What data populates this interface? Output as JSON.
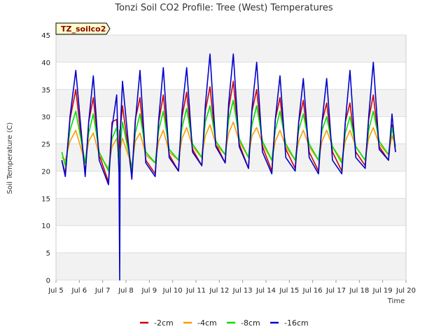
{
  "chart_data": {
    "type": "line",
    "title": "Tonzi Soil CO2 Profile: Tree (West) Temperatures",
    "xlabel": "Time",
    "ylabel": "Soil Temperature (C)",
    "badge": "TZ_soilco2",
    "ylim": [
      0,
      45
    ],
    "yticks": [
      0,
      5,
      10,
      15,
      20,
      25,
      30,
      35,
      40,
      45
    ],
    "xlim": [
      "2024-07-05",
      "2024-07-20"
    ],
    "xticks": [
      "Jul 5",
      "Jul 6",
      "Jul 7",
      "Jul 8",
      "Jul 9",
      "Jul 10",
      "Jul 11",
      "Jul 12",
      "Jul 13",
      "Jul 14",
      "Jul 15",
      "Jul 16",
      "Jul 17",
      "Jul 18",
      "Jul 19",
      "Jul 20"
    ],
    "grid": true,
    "legend_position": "bottom",
    "x_days": [
      5.25,
      5.4,
      5.6,
      5.85,
      6.25,
      6.4,
      6.6,
      6.85,
      7.25,
      7.4,
      7.6,
      7.7,
      7.73,
      7.75,
      7.85,
      8.25,
      8.4,
      8.6,
      8.85,
      9.25,
      9.4,
      9.6,
      9.85,
      10.25,
      10.4,
      10.6,
      10.85,
      11.25,
      11.4,
      11.6,
      11.85,
      12.25,
      12.4,
      12.6,
      12.85,
      13.25,
      13.4,
      13.6,
      13.85,
      14.25,
      14.4,
      14.6,
      14.85,
      15.25,
      15.4,
      15.6,
      15.85,
      16.25,
      16.4,
      16.6,
      16.85,
      17.25,
      17.4,
      17.6,
      17.85,
      18.25,
      18.4,
      18.6,
      18.85,
      19.25,
      19.4,
      19.55
    ],
    "series": [
      {
        "name": "-2cm",
        "color": "#cc0000",
        "values": [
          22.0,
          19.5,
          29.5,
          35.0,
          19.5,
          29.0,
          33.5,
          23.0,
          18.0,
          29.0,
          29.5,
          20.0,
          27.5,
          27.5,
          32.0,
          19.0,
          29.5,
          33.5,
          22.0,
          19.5,
          29.0,
          34.0,
          23.0,
          20.0,
          30.0,
          34.5,
          24.0,
          21.0,
          31.0,
          35.5,
          25.0,
          21.5,
          31.5,
          36.5,
          25.0,
          20.5,
          31.0,
          35.0,
          24.5,
          20.0,
          29.5,
          33.5,
          24.0,
          20.5,
          29.0,
          33.0,
          23.5,
          20.0,
          29.0,
          32.5,
          23.5,
          20.0,
          29.0,
          32.5,
          23.5,
          21.0,
          29.5,
          34.0,
          24.5,
          22.0,
          28.5,
          23.5
        ]
      },
      {
        "name": "-4cm",
        "color": "#ff9900",
        "values": [
          22.5,
          22.0,
          25.5,
          27.5,
          21.5,
          25.5,
          27.0,
          23.0,
          20.5,
          24.5,
          26.0,
          22.0,
          23.5,
          24.0,
          26.0,
          21.0,
          25.5,
          27.0,
          23.0,
          21.5,
          25.5,
          27.5,
          23.5,
          22.0,
          26.0,
          28.0,
          24.5,
          22.5,
          26.5,
          28.5,
          25.0,
          23.0,
          27.0,
          29.0,
          25.5,
          22.5,
          26.5,
          28.0,
          25.0,
          22.0,
          25.5,
          27.5,
          24.5,
          22.0,
          25.5,
          27.5,
          24.5,
          22.0,
          25.5,
          27.5,
          24.5,
          22.0,
          25.5,
          27.5,
          24.5,
          22.0,
          26.0,
          28.0,
          25.0,
          23.0,
          26.5,
          24.5
        ]
      },
      {
        "name": "-8cm",
        "color": "#00dd00",
        "values": [
          23.5,
          21.0,
          27.5,
          31.0,
          21.5,
          27.0,
          30.5,
          23.5,
          20.0,
          26.0,
          28.0,
          21.0,
          24.0,
          24.5,
          29.0,
          20.5,
          27.0,
          30.5,
          23.5,
          21.5,
          27.5,
          31.0,
          24.0,
          22.0,
          28.0,
          31.5,
          25.0,
          22.5,
          29.0,
          32.0,
          25.5,
          23.0,
          29.5,
          33.0,
          26.0,
          22.5,
          28.5,
          32.0,
          25.5,
          22.0,
          27.5,
          31.0,
          25.0,
          22.0,
          27.5,
          30.5,
          25.0,
          22.0,
          27.5,
          30.0,
          24.5,
          21.5,
          27.0,
          30.0,
          24.5,
          22.0,
          27.5,
          31.0,
          25.5,
          23.0,
          28.0,
          24.5
        ]
      },
      {
        "name": "-16cm",
        "color": "#0000cc",
        "values": [
          22.0,
          19.0,
          30.0,
          38.5,
          19.0,
          29.0,
          37.5,
          22.0,
          17.5,
          28.0,
          34.0,
          19.5,
          0.0,
          27.0,
          36.5,
          18.5,
          29.0,
          38.5,
          21.5,
          19.0,
          29.5,
          39.0,
          22.5,
          20.0,
          31.0,
          39.0,
          23.5,
          21.0,
          32.0,
          41.5,
          24.5,
          21.5,
          32.5,
          41.5,
          24.5,
          20.5,
          31.5,
          40.0,
          23.5,
          19.5,
          29.5,
          37.5,
          22.5,
          20.0,
          29.0,
          37.0,
          22.5,
          19.5,
          29.0,
          37.0,
          22.0,
          19.5,
          29.0,
          38.5,
          22.5,
          20.5,
          30.0,
          40.0,
          24.0,
          22.0,
          30.5,
          23.5
        ]
      }
    ]
  }
}
